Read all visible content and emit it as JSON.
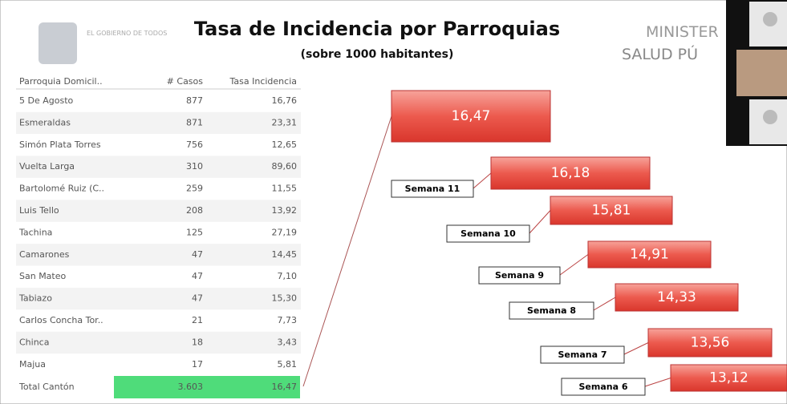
{
  "header": {
    "title": "Tasa de Incidencia por Parroquias",
    "subtitle": "(sobre 1000 habitantes)",
    "logo_text": "EL GOBIERNO DE TODOS",
    "ministry_line1": "MINISTER",
    "ministry_line2": "SALUD PÚ"
  },
  "table": {
    "columns": [
      "Parroquia Domicil..",
      "# Casos",
      "Tasa Incidencia"
    ],
    "rows": [
      [
        "5 De Agosto",
        "877",
        "16,76"
      ],
      [
        "Esmeraldas",
        "871",
        "23,31"
      ],
      [
        "Simón Plata Torres",
        "756",
        "12,65"
      ],
      [
        "Vuelta Larga",
        "310",
        "89,60"
      ],
      [
        "Bartolomé Ruiz (C..",
        "259",
        "11,55"
      ],
      [
        "Luis Tello",
        "208",
        "13,92"
      ],
      [
        "Tachina",
        "125",
        "27,19"
      ],
      [
        "Camarones",
        "47",
        "14,45"
      ],
      [
        "San Mateo",
        "47",
        "7,10"
      ],
      [
        "Tabiazo",
        "47",
        "15,30"
      ],
      [
        "Carlos Concha Tor..",
        "21",
        "7,73"
      ],
      [
        "Chinca",
        "18",
        "3,43"
      ],
      [
        "Majua",
        "17",
        "5,81"
      ]
    ],
    "total": [
      "Total Cantón",
      "3.603",
      "16,47"
    ]
  },
  "highlight": "16,47",
  "weeks": [
    {
      "label": "Semana 11",
      "value": "16,18"
    },
    {
      "label": "Semana 10",
      "value": "15,81"
    },
    {
      "label": "Semana 9",
      "value": "14,91"
    },
    {
      "label": "Semana 8",
      "value": "14,33"
    },
    {
      "label": "Semana 7",
      "value": "13,56"
    },
    {
      "label": "Semana 6",
      "value": "13,12"
    }
  ]
}
